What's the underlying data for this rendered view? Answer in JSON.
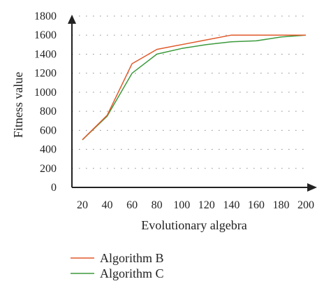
{
  "chart_data": {
    "type": "line",
    "title": "",
    "xlabel": "Evolutionary algebra",
    "ylabel": "Fitness value",
    "categories": [
      "20",
      "40",
      "60",
      "80",
      "100",
      "120",
      "140",
      "160",
      "180",
      "200"
    ],
    "x": [
      20,
      40,
      60,
      80,
      100,
      120,
      140,
      160,
      180,
      200
    ],
    "ylim": [
      0,
      1800
    ],
    "yticks": [
      "0",
      "200",
      "400",
      "600",
      "800",
      "1000",
      "1200",
      "1400",
      "1600",
      "1800"
    ],
    "grid": "horizontal dotted",
    "legend_placement": "bottom-left",
    "series": [
      {
        "name": "Algorithm B",
        "color": "#e0592a",
        "values": [
          500,
          760,
          1300,
          1450,
          1500,
          1550,
          1600,
          1600,
          1600,
          1600
        ]
      },
      {
        "name": "Algorithm C",
        "color": "#3c9a3c",
        "values": [
          500,
          750,
          1200,
          1400,
          1460,
          1500,
          1530,
          1540,
          1580,
          1600
        ]
      }
    ]
  }
}
